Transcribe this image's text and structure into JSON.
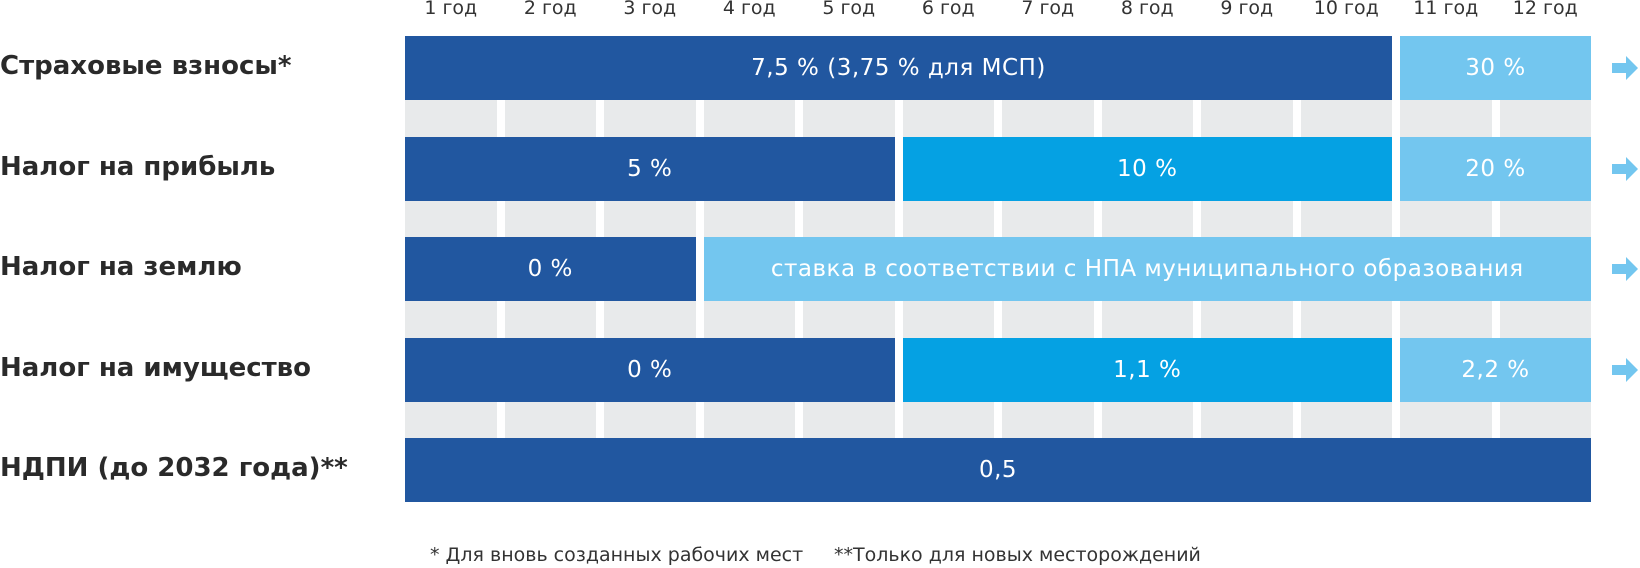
{
  "colors": {
    "dark": "#2157a0",
    "mid": "#05a1e3",
    "light": "#73c6ef",
    "grid": "#e8eaeb"
  },
  "years": [
    "1 год",
    "2 год",
    "3 год",
    "4 год",
    "5 год",
    "6 год",
    "7 год",
    "8 год",
    "9 год",
    "10 год",
    "11 год",
    "12 год"
  ],
  "rows": [
    {
      "label": "Страховые взносы*",
      "segments": [
        {
          "text": "7,5 % (3,75 % для МСП)",
          "from_year": 1,
          "to_year": 10,
          "color": "dark"
        },
        {
          "text": "30 %",
          "from_year": 11,
          "to_year": 12,
          "color": "light"
        }
      ],
      "arrow": true
    },
    {
      "label": "Налог на прибыль",
      "segments": [
        {
          "text": "5 %",
          "from_year": 1,
          "to_year": 5,
          "color": "dark"
        },
        {
          "text": "10 %",
          "from_year": 6,
          "to_year": 10,
          "color": "mid"
        },
        {
          "text": "20 %",
          "from_year": 11,
          "to_year": 12,
          "color": "light"
        }
      ],
      "arrow": true
    },
    {
      "label": "Налог на землю",
      "segments": [
        {
          "text": "0 %",
          "from_year": 1,
          "to_year": 3,
          "color": "dark"
        },
        {
          "text": "ставка в соответствии с НПА муниципального образования",
          "from_year": 4,
          "to_year": 12,
          "color": "light"
        }
      ],
      "arrow": true
    },
    {
      "label": "Налог на имущество",
      "segments": [
        {
          "text": "0 %",
          "from_year": 1,
          "to_year": 5,
          "color": "dark"
        },
        {
          "text": "1,1 %",
          "from_year": 6,
          "to_year": 10,
          "color": "mid"
        },
        {
          "text": "2,2 %",
          "from_year": 11,
          "to_year": 12,
          "color": "light"
        }
      ],
      "arrow": true
    },
    {
      "label": "НДПИ (до 2032 года)**",
      "segments": [
        {
          "text": "0,5",
          "from_year": 1,
          "to_year": 12,
          "color": "dark"
        }
      ],
      "arrow": false
    }
  ],
  "footnotes": [
    "* Для вновь созданных рабочих мест",
    "**Только для новых месторождений"
  ]
}
